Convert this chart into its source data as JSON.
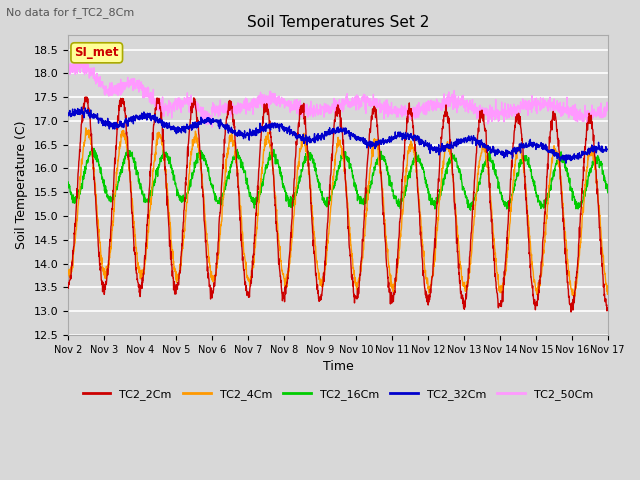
{
  "title": "Soil Temperatures Set 2",
  "subtitle": "No data for f_TC2_8Cm",
  "xlabel": "Time",
  "ylabel": "Soil Temperature (C)",
  "ylim": [
    12.5,
    18.8
  ],
  "xlim": [
    0,
    15
  ],
  "background_color": "#d8d8d8",
  "plot_bg_color": "#d8d8d8",
  "grid_color": "#ffffff",
  "annotation_box_text": "SI_met",
  "annotation_box_color": "#ffff99",
  "annotation_box_edge": "#aaaa00",
  "annotation_text_color": "#cc0000",
  "series_colors": [
    "#cc0000",
    "#ff9900",
    "#00cc00",
    "#0000cc",
    "#ff99ff"
  ],
  "legend_entries": [
    "TC2_2Cm",
    "TC2_4Cm",
    "TC2_16Cm",
    "TC2_32Cm",
    "TC2_50Cm"
  ],
  "xtick_labels": [
    "Nov 2",
    "Nov 3",
    "Nov 4",
    "Nov 5",
    "Nov 6",
    "Nov 7",
    "Nov 8",
    "Nov 9",
    "Nov 10",
    "Nov 11",
    "Nov 12",
    "Nov 13",
    "Nov 14",
    "Nov 15",
    "Nov 16",
    "Nov 17"
  ],
  "n_points": 2000,
  "days": 15
}
